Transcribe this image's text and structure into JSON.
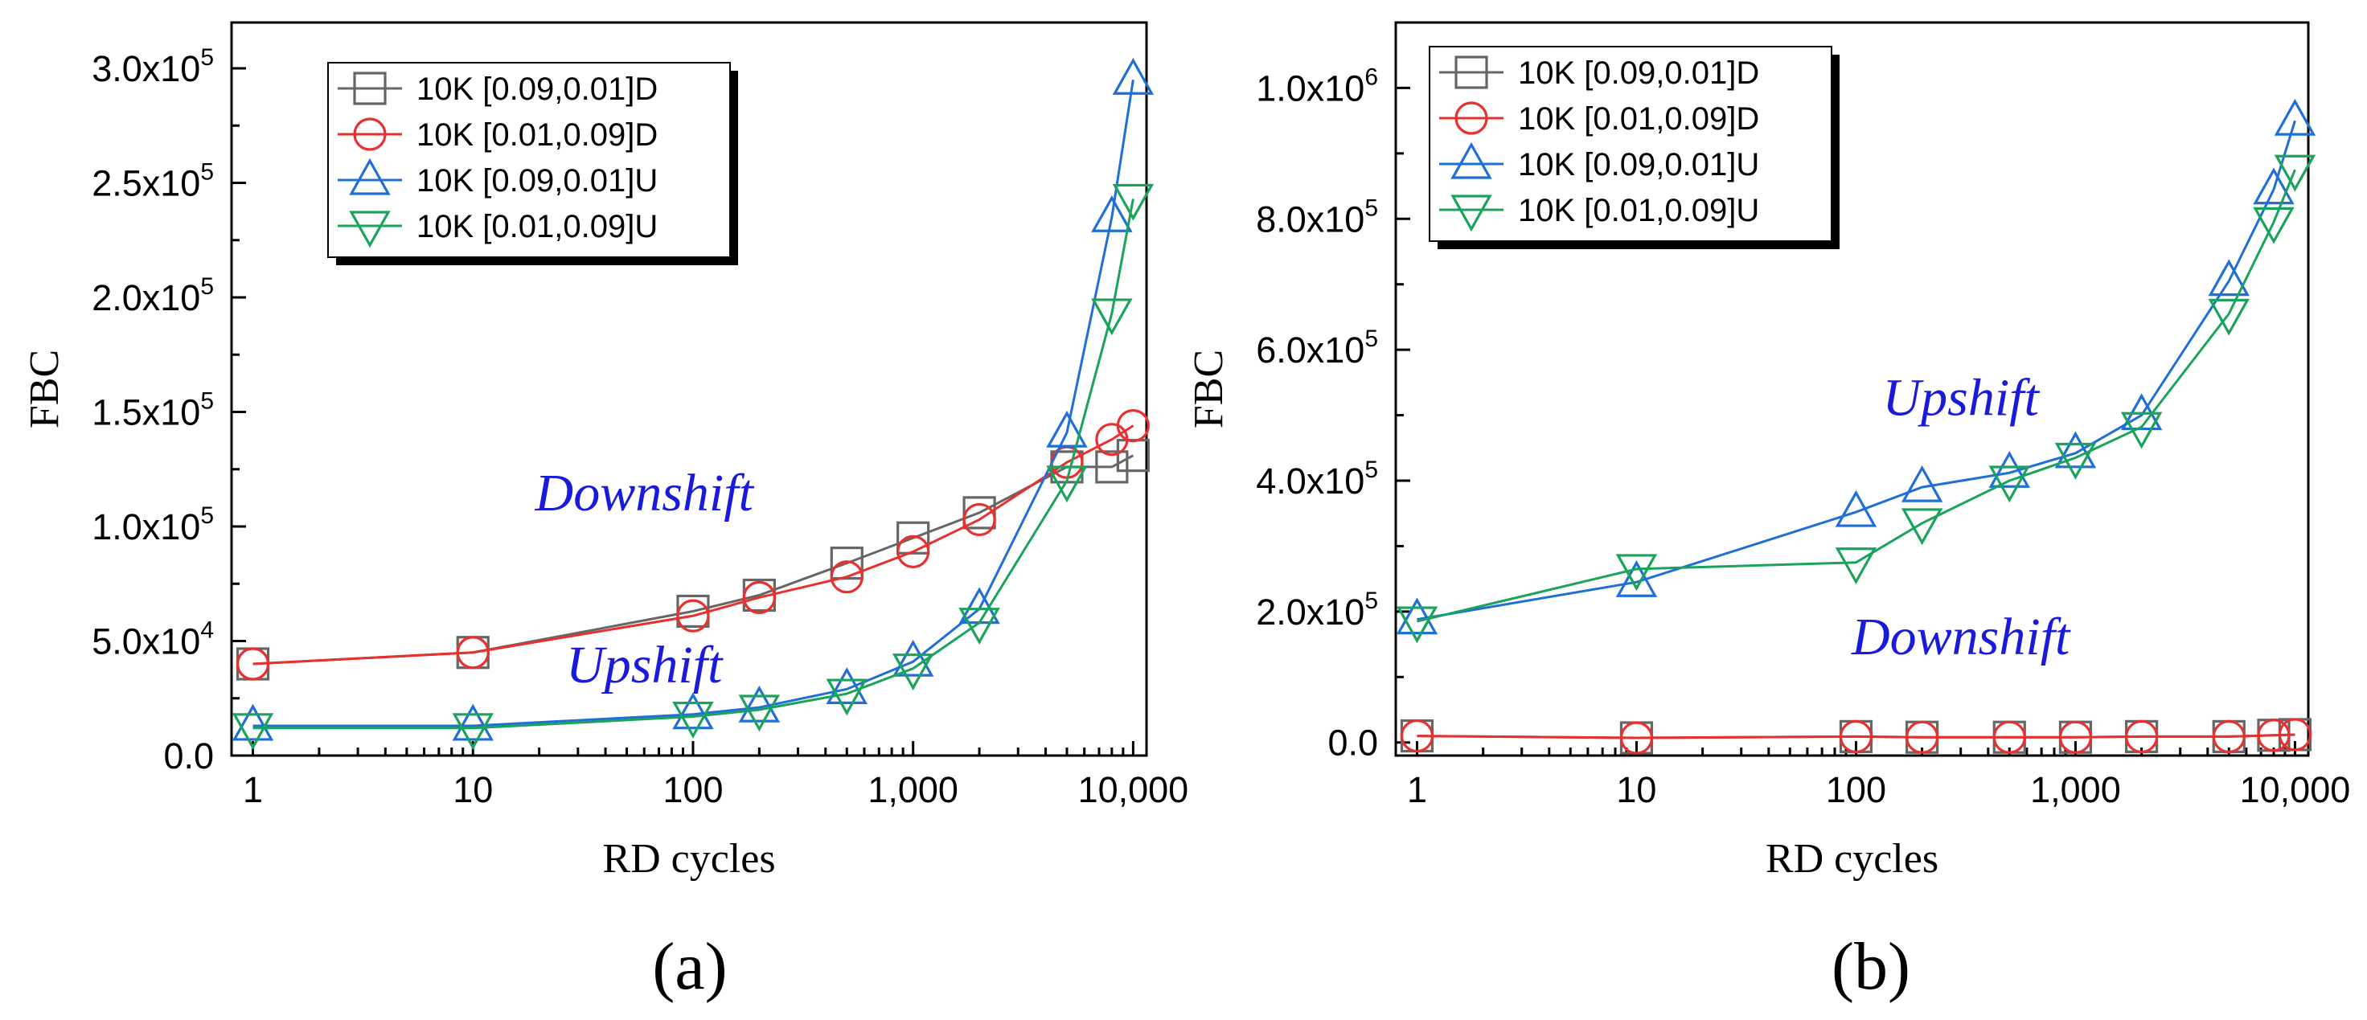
{
  "chart_data": [
    {
      "type": "line",
      "panel_label": "(a)",
      "xlabel": "RD cycles",
      "ylabel": "FBC",
      "x_scale": "log",
      "xlim": [
        0.8,
        11500
      ],
      "ylim": [
        0,
        320000
      ],
      "x_ticks": [
        1,
        10,
        100,
        1000,
        10000
      ],
      "x_tick_labels": [
        "1",
        "10",
        "100",
        "1,000",
        "10,000"
      ],
      "y_ticks": [
        0,
        50000,
        100000,
        150000,
        200000,
        250000,
        300000
      ],
      "y_tick_labels": [
        {
          "mantissa": "0.0",
          "exp": ""
        },
        {
          "mantissa": "5.0x10",
          "exp": "4"
        },
        {
          "mantissa": "1.0x10",
          "exp": "5"
        },
        {
          "mantissa": "1.5x10",
          "exp": "5"
        },
        {
          "mantissa": "2.0x10",
          "exp": "5"
        },
        {
          "mantissa": "2.5x10",
          "exp": "5"
        },
        {
          "mantissa": "3.0x10",
          "exp": "5"
        }
      ],
      "legend_position": "top-left",
      "series": [
        {
          "name": "10K [0.09,0.01]D",
          "color": "#666666",
          "marker": "square",
          "x": [
            1,
            10,
            100,
            200,
            500,
            1000,
            2000,
            5000,
            8000,
            10000
          ],
          "y": [
            40000,
            45000,
            63000,
            70000,
            84000,
            95000,
            106000,
            126000,
            126000,
            131000
          ]
        },
        {
          "name": "10K [0.01,0.09]D",
          "color": "#e8302e",
          "marker": "circle",
          "x": [
            1,
            10,
            100,
            200,
            500,
            1000,
            2000,
            5000,
            8000,
            10000
          ],
          "y": [
            40000,
            45000,
            61000,
            69000,
            78000,
            89000,
            103000,
            128000,
            138000,
            144000
          ]
        },
        {
          "name": "10K [0.09,0.01]U",
          "color": "#1f6fd6",
          "marker": "triangle-up",
          "x": [
            1,
            10,
            100,
            200,
            500,
            1000,
            2000,
            5000,
            8000,
            10000
          ],
          "y": [
            13000,
            13000,
            18000,
            21000,
            29000,
            41000,
            64000,
            141000,
            235000,
            295000
          ]
        },
        {
          "name": "10K [0.01,0.09]U",
          "color": "#1aa35a",
          "marker": "triangle-down",
          "x": [
            1,
            10,
            100,
            200,
            500,
            1000,
            2000,
            5000,
            8000,
            10000
          ],
          "y": [
            12000,
            12000,
            17000,
            20000,
            27000,
            38000,
            58000,
            120000,
            193000,
            243000
          ]
        }
      ],
      "annotations": [
        {
          "text": "Downshift",
          "x": 60,
          "y": 107000
        },
        {
          "text": "Upshift",
          "x": 60,
          "y": 32000
        }
      ]
    },
    {
      "type": "line",
      "panel_label": "(b)",
      "xlabel": "RD cycles",
      "ylabel": "FBC",
      "x_scale": "log",
      "xlim": [
        0.8,
        11500
      ],
      "ylim": [
        -20000,
        1100000
      ],
      "x_ticks": [
        1,
        10,
        100,
        1000,
        10000
      ],
      "x_tick_labels": [
        "1",
        "10",
        "100",
        "1,000",
        "10,000"
      ],
      "y_ticks": [
        0,
        200000,
        400000,
        600000,
        800000,
        1000000
      ],
      "y_tick_labels": [
        {
          "mantissa": "0.0",
          "exp": ""
        },
        {
          "mantissa": "2.0x10",
          "exp": "5"
        },
        {
          "mantissa": "4.0x10",
          "exp": "5"
        },
        {
          "mantissa": "6.0x10",
          "exp": "5"
        },
        {
          "mantissa": "8.0x10",
          "exp": "5"
        },
        {
          "mantissa": "1.0x10",
          "exp": "6"
        }
      ],
      "legend_position": "top-left",
      "series": [
        {
          "name": "10K [0.09,0.01]D",
          "color": "#666666",
          "marker": "square",
          "x": [
            1,
            10,
            100,
            200,
            500,
            1000,
            2000,
            5000,
            8000,
            10000
          ],
          "y": [
            10000,
            7000,
            9000,
            8000,
            8000,
            8000,
            9000,
            9000,
            11000,
            12000
          ]
        },
        {
          "name": "10K [0.01,0.09]D",
          "color": "#e8302e",
          "marker": "circle",
          "x": [
            1,
            10,
            100,
            200,
            500,
            1000,
            2000,
            5000,
            8000,
            10000
          ],
          "y": [
            10000,
            7000,
            9000,
            8000,
            8000,
            8000,
            9000,
            9000,
            11000,
            12000
          ]
        },
        {
          "name": "10K [0.09,0.01]U",
          "color": "#1f6fd6",
          "marker": "triangle-up",
          "x": [
            1,
            10,
            100,
            200,
            500,
            1000,
            2000,
            5000,
            8000,
            10000
          ],
          "y": [
            188000,
            245000,
            352000,
            390000,
            412000,
            442000,
            500000,
            705000,
            845000,
            950000
          ]
        },
        {
          "name": "10K [0.01,0.09]U",
          "color": "#1aa35a",
          "marker": "triangle-down",
          "x": [
            1,
            10,
            100,
            200,
            500,
            1000,
            2000,
            5000,
            8000,
            10000
          ],
          "y": [
            185000,
            265000,
            275000,
            335000,
            400000,
            435000,
            482000,
            655000,
            795000,
            875000
          ]
        }
      ],
      "annotations": [
        {
          "text": "Upshift",
          "x": 300,
          "y": 500000
        },
        {
          "text": "Downshift",
          "x": 300,
          "y": 135000
        }
      ]
    }
  ]
}
